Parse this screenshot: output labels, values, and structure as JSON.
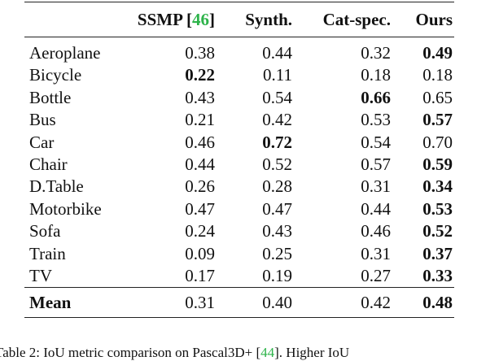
{
  "table": {
    "headers": {
      "method1": "SSMP",
      "method1_ref": "46",
      "method2": "Synth.",
      "method3": "Cat-spec.",
      "method4": "Ours"
    },
    "rows": [
      {
        "category": "Aeroplane",
        "values": [
          "0.38",
          "0.44",
          "0.32",
          "0.49"
        ],
        "best": 3
      },
      {
        "category": "Bicycle",
        "values": [
          "0.22",
          "0.11",
          "0.18",
          "0.18"
        ],
        "best": 0
      },
      {
        "category": "Bottle",
        "values": [
          "0.43",
          "0.54",
          "0.66",
          "0.65"
        ],
        "best": 2
      },
      {
        "category": "Bus",
        "values": [
          "0.21",
          "0.42",
          "0.53",
          "0.57"
        ],
        "best": 3
      },
      {
        "category": "Car",
        "values": [
          "0.46",
          "0.72",
          "0.54",
          "0.70"
        ],
        "best": 1
      },
      {
        "category": "Chair",
        "values": [
          "0.44",
          "0.52",
          "0.57",
          "0.59"
        ],
        "best": 3
      },
      {
        "category": "D.Table",
        "values": [
          "0.26",
          "0.28",
          "0.31",
          "0.34"
        ],
        "best": 3
      },
      {
        "category": "Motorbike",
        "values": [
          "0.47",
          "0.47",
          "0.44",
          "0.53"
        ],
        "best": 3
      },
      {
        "category": "Sofa",
        "values": [
          "0.24",
          "0.43",
          "0.46",
          "0.52"
        ],
        "best": 3
      },
      {
        "category": "Train",
        "values": [
          "0.09",
          "0.25",
          "0.31",
          "0.37"
        ],
        "best": 3
      },
      {
        "category": "TV",
        "values": [
          "0.17",
          "0.19",
          "0.27",
          "0.33"
        ],
        "best": 3
      }
    ],
    "mean": {
      "label": "Mean",
      "values": [
        "0.31",
        "0.40",
        "0.42",
        "0.48"
      ],
      "best": 3
    }
  },
  "caption": {
    "prefix": "Table 2: IoU metric comparison on Pascal3D+",
    "ref": "44",
    "suffix": ". Higher IoU"
  }
}
